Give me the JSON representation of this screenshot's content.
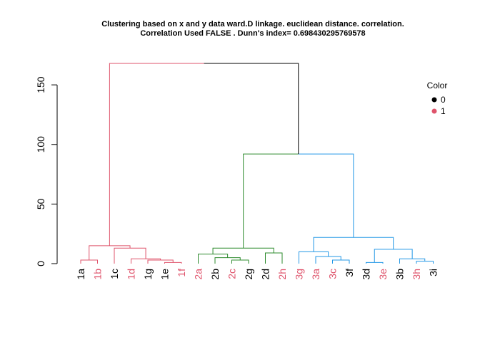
{
  "chart_data": {
    "type": "dendrogram",
    "title_line1": "Clustering based on x and y data ward.D  linkage.  euclidean  distance.    correlation.",
    "title_line2": "Correlation Used FALSE . Dunn's index=  0.698430295769578",
    "ylim": [
      0,
      168
    ],
    "y_ticks": [
      0,
      50,
      100,
      150
    ],
    "y_tick_labels": [
      "0",
      "50",
      "100",
      "150"
    ],
    "leaves": [
      {
        "label": "1a",
        "color_value": 0
      },
      {
        "label": "1b",
        "color_value": 1
      },
      {
        "label": "1c",
        "color_value": 0
      },
      {
        "label": "1d",
        "color_value": 1
      },
      {
        "label": "1g",
        "color_value": 0
      },
      {
        "label": "1e",
        "color_value": 0
      },
      {
        "label": "1f",
        "color_value": 1
      },
      {
        "label": "2a",
        "color_value": 1
      },
      {
        "label": "2b",
        "color_value": 0
      },
      {
        "label": "2c",
        "color_value": 1
      },
      {
        "label": "2g",
        "color_value": 0
      },
      {
        "label": "2d",
        "color_value": 0
      },
      {
        "label": "2h",
        "color_value": 1
      },
      {
        "label": "3g",
        "color_value": 1
      },
      {
        "label": "3a",
        "color_value": 1
      },
      {
        "label": "3c",
        "color_value": 1
      },
      {
        "label": "3f",
        "color_value": 0
      },
      {
        "label": "3d",
        "color_value": 0
      },
      {
        "label": "3e",
        "color_value": 1
      },
      {
        "label": "3b",
        "color_value": 0
      },
      {
        "label": "3h",
        "color_value": 1
      },
      {
        "label": "3i",
        "color_value": 0
      }
    ],
    "merges": [
      {
        "left": "1e",
        "right": "1f",
        "height": 1,
        "color": "#DF536B"
      },
      {
        "left": "1g",
        "right": "(1e,1f)",
        "height": 3,
        "color": "#DF536B"
      },
      {
        "left": "1a",
        "right": "1b",
        "height": 3,
        "color": "#DF536B"
      },
      {
        "left": "1d",
        "right": "(1g,1e,1f)",
        "height": 4,
        "color": "#DF536B"
      },
      {
        "left": "1c",
        "right": "(1d,1g,1e,1f)",
        "height": 13,
        "color": "#DF536B"
      },
      {
        "left": "(1a,1b)",
        "right": "(1c,...,1f)",
        "height": 15,
        "color": "#DF536B"
      },
      {
        "left": "2g",
        "right": "2c?",
        "height": 3,
        "color": "#2E8B2E"
      },
      {
        "left": "2c",
        "right": "2g",
        "height": 3,
        "color": "#2E8B2E"
      },
      {
        "left": "2b",
        "right": "(2c,2g)",
        "height": 5,
        "color": "#2E8B2E"
      },
      {
        "left": "2a",
        "right": "(2b,2c,2g)",
        "height": 8,
        "color": "#2E8B2E"
      },
      {
        "left": "2d",
        "right": "2h",
        "height": 9,
        "color": "#2E8B2E"
      },
      {
        "left": "(2a,...,2g)",
        "right": "(2d,2h)",
        "height": 13,
        "color": "#2E8B2E"
      },
      {
        "left": "3c",
        "right": "3f",
        "height": 3,
        "color": "#2297E6"
      },
      {
        "left": "3a",
        "right": "(3c,3f)",
        "height": 6,
        "color": "#2297E6"
      },
      {
        "left": "3g",
        "right": "(3a,3c,3f)",
        "height": 10,
        "color": "#2297E6"
      },
      {
        "left": "3d",
        "right": "3e",
        "height": 1,
        "color": "#2297E6"
      },
      {
        "left": "3h",
        "right": "3i",
        "height": 2,
        "color": "#2297E6"
      },
      {
        "left": "3b",
        "right": "(3h,3i)",
        "height": 4,
        "color": "#2297E6"
      },
      {
        "left": "(3d,3e)",
        "right": "(3b,3h,3i)",
        "height": 12,
        "color": "#2297E6"
      },
      {
        "left": "(3g,...,3f)",
        "right": "(3d,...,3i)",
        "height": 22,
        "color": "#2297E6"
      },
      {
        "left": "cluster2",
        "right": "cluster3",
        "height": 92,
        "color": "#2E8B2E"
      },
      {
        "left": "cluster1",
        "right": "(cluster2,cluster3)",
        "height": 168,
        "color": "#000000"
      }
    ],
    "legend": {
      "title": "Color",
      "position": "top-right",
      "items": [
        {
          "label": "0",
          "color": "#000000"
        },
        {
          "label": "1",
          "color": "#DF536B"
        }
      ]
    },
    "colors": {
      "cluster1": "#DF536B",
      "cluster2": "#2E8B2E",
      "cluster3": "#2297E6",
      "root": "#000000",
      "label_0": "#000000",
      "label_1": "#DF536B",
      "axis": "#000000"
    }
  }
}
